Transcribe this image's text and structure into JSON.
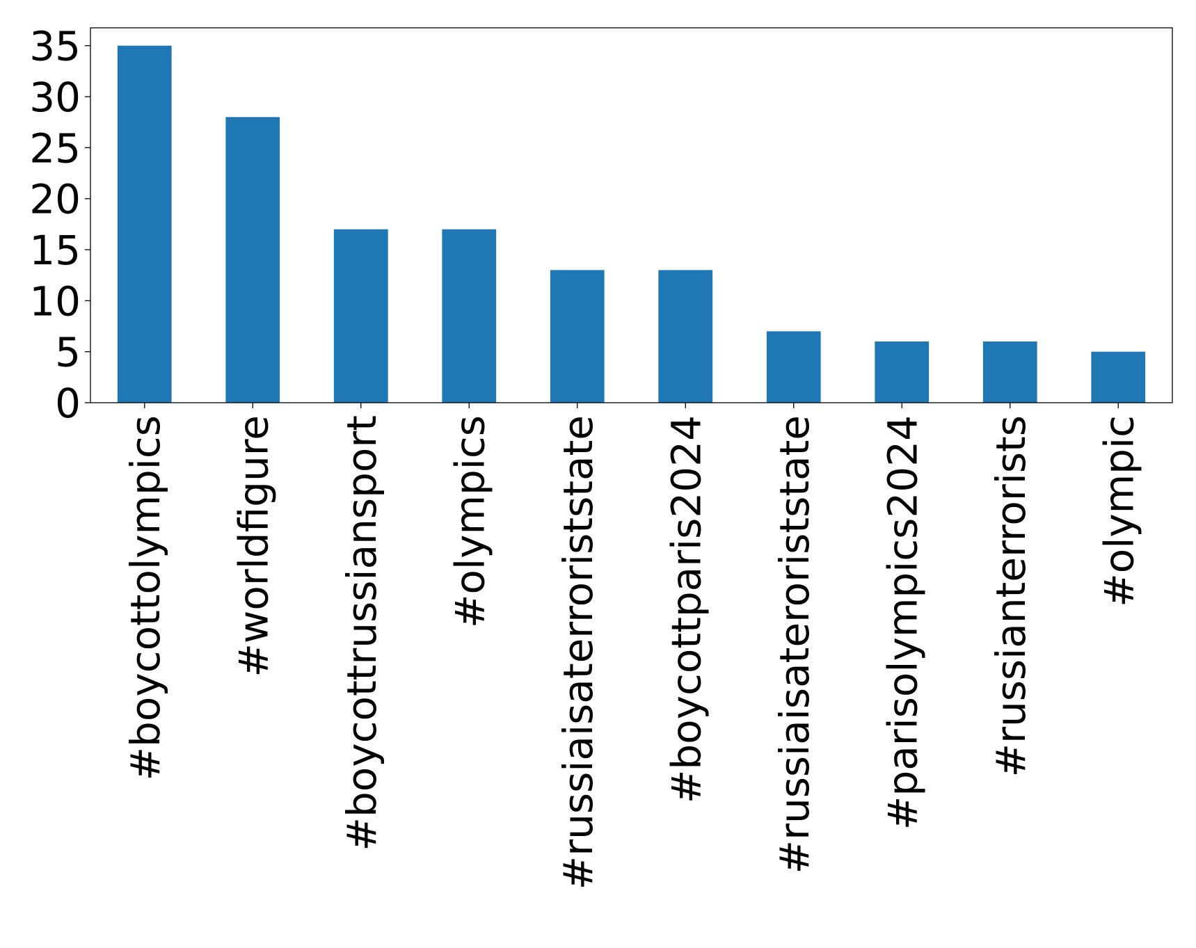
{
  "chart_data": {
    "type": "bar",
    "categories": [
      "#boycottolympics",
      "#worldfigure",
      "#boycottrussiansport",
      "#olympics",
      "#russiaisaterroriststate",
      "#boycottparis2024",
      "#russiaisateroriststate",
      "#parisolympics2024",
      "#russianterrorists",
      "#olympic"
    ],
    "values": [
      35,
      28,
      17,
      17,
      13,
      13,
      7,
      6,
      6,
      5
    ],
    "title": "",
    "xlabel": "",
    "ylabel": "",
    "ylim": [
      0,
      36.75
    ],
    "yticks": [
      0,
      5,
      10,
      15,
      20,
      25,
      30,
      35
    ],
    "bar_color": "#1f77b4",
    "grid": false,
    "legend": "none"
  }
}
